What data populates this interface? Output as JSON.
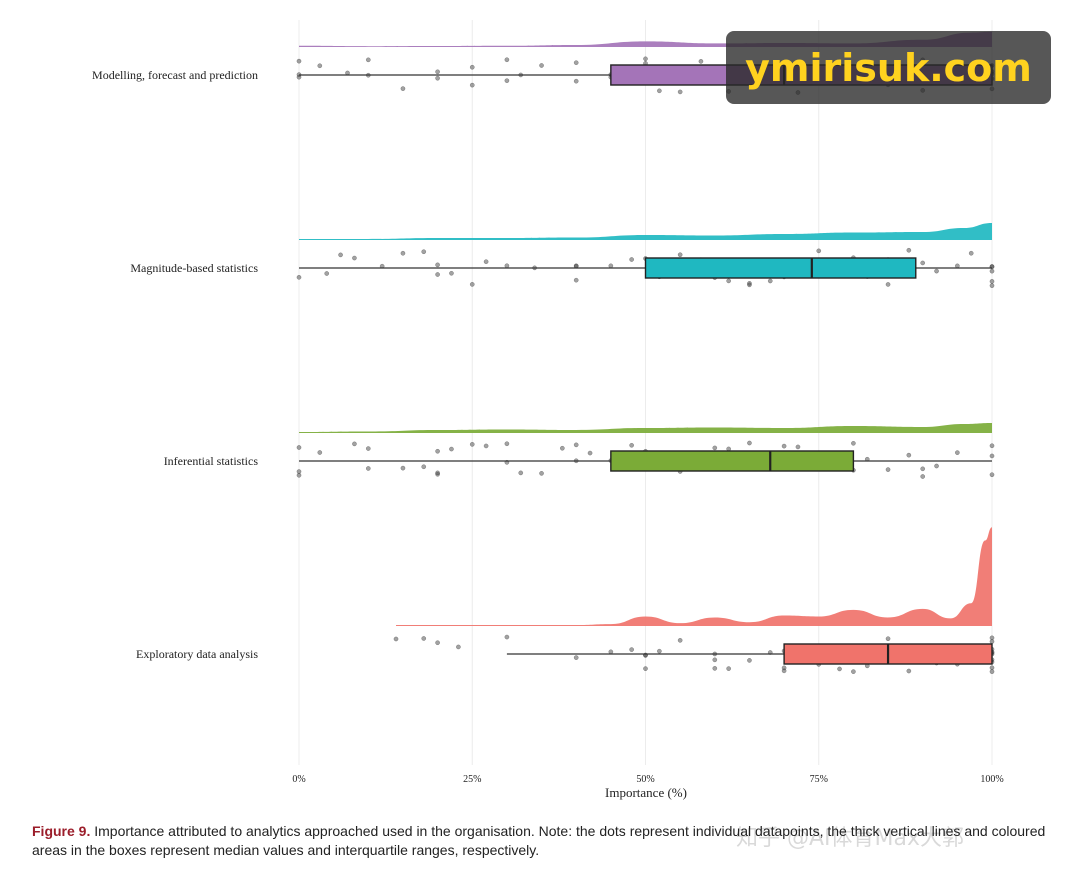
{
  "chart_data": {
    "type": "raincloud",
    "xlabel": "Importance (%)",
    "xlim": [
      0,
      100
    ],
    "ticks": [
      "0%",
      "25%",
      "50%",
      "75%",
      "100%"
    ],
    "tick_values": [
      0,
      25,
      50,
      75,
      100
    ],
    "grid": "vertical",
    "series": [
      {
        "name": "Modelling, forecast and prediction",
        "color": "#a474b8",
        "box": {
          "q1": 45,
          "median": 70,
          "q3": 100,
          "whisker_low": 0,
          "whisker_high": 100
        },
        "density": [
          [
            0,
            0.15
          ],
          [
            10,
            0.1
          ],
          [
            20,
            0.12
          ],
          [
            30,
            0.15
          ],
          [
            40,
            0.25
          ],
          [
            50,
            0.7
          ],
          [
            60,
            0.45
          ],
          [
            70,
            0.5
          ],
          [
            80,
            0.45
          ],
          [
            90,
            0.9
          ],
          [
            97,
            1.8
          ],
          [
            100,
            1.9
          ]
        ],
        "points": [
          0,
          0,
          0,
          3,
          7,
          10,
          10,
          15,
          20,
          20,
          25,
          25,
          30,
          30,
          32,
          35,
          40,
          40,
          45,
          45,
          50,
          50,
          52,
          55,
          58,
          60,
          62,
          65,
          65,
          68,
          70,
          70,
          72,
          72,
          75,
          78,
          80,
          80,
          82,
          85,
          85,
          88,
          90,
          90,
          95,
          100,
          100,
          100,
          100,
          100
        ]
      },
      {
        "name": "Magnitude-based statistics",
        "color": "#1fb8c1",
        "box": {
          "q1": 50,
          "median": 74,
          "q3": 89,
          "whisker_low": 0,
          "whisker_high": 100
        },
        "density": [
          [
            0,
            0.1
          ],
          [
            10,
            0.1
          ],
          [
            20,
            0.2
          ],
          [
            30,
            0.2
          ],
          [
            40,
            0.25
          ],
          [
            50,
            0.5
          ],
          [
            60,
            0.45
          ],
          [
            70,
            0.6
          ],
          [
            80,
            0.75
          ],
          [
            90,
            0.8
          ],
          [
            96,
            1.2
          ],
          [
            100,
            1.7
          ]
        ],
        "points": [
          0,
          4,
          6,
          8,
          12,
          15,
          18,
          20,
          20,
          22,
          25,
          27,
          30,
          34,
          40,
          40,
          40,
          45,
          48,
          50,
          52,
          55,
          58,
          60,
          62,
          65,
          65,
          68,
          70,
          70,
          72,
          75,
          75,
          78,
          80,
          80,
          80,
          82,
          85,
          85,
          88,
          90,
          92,
          95,
          97,
          100,
          100,
          100,
          100,
          100
        ]
      },
      {
        "name": "Inferential statistics",
        "color": "#7bab37",
        "box": {
          "q1": 45,
          "median": 68,
          "q3": 80,
          "whisker_low": 0,
          "whisker_high": 100
        },
        "density": [
          [
            0,
            0.1
          ],
          [
            10,
            0.15
          ],
          [
            20,
            0.3
          ],
          [
            30,
            0.35
          ],
          [
            40,
            0.3
          ],
          [
            50,
            0.5
          ],
          [
            60,
            0.55
          ],
          [
            70,
            0.5
          ],
          [
            80,
            0.7
          ],
          [
            90,
            0.6
          ],
          [
            96,
            0.9
          ],
          [
            100,
            1.0
          ]
        ],
        "points": [
          0,
          0,
          0,
          3,
          8,
          10,
          10,
          15,
          18,
          20,
          20,
          20,
          22,
          25,
          27,
          30,
          30,
          32,
          35,
          38,
          40,
          40,
          42,
          45,
          48,
          50,
          50,
          52,
          55,
          60,
          62,
          65,
          68,
          70,
          70,
          72,
          75,
          78,
          80,
          80,
          82,
          85,
          88,
          90,
          90,
          92,
          95,
          100,
          100,
          100
        ]
      },
      {
        "name": "Exploratory data analysis",
        "color": "#f0736b",
        "box": {
          "q1": 70,
          "median": 85,
          "q3": 100,
          "whisker_low": 30,
          "whisker_high": 100
        },
        "density": [
          [
            14,
            0.05
          ],
          [
            20,
            0.05
          ],
          [
            30,
            0.05
          ],
          [
            40,
            0.05
          ],
          [
            45,
            0.1
          ],
          [
            50,
            0.5
          ],
          [
            55,
            0.15
          ],
          [
            60,
            0.45
          ],
          [
            65,
            0.2
          ],
          [
            70,
            0.55
          ],
          [
            75,
            0.5
          ],
          [
            80,
            0.85
          ],
          [
            85,
            0.45
          ],
          [
            90,
            0.9
          ],
          [
            94,
            0.4
          ],
          [
            97,
            1.2
          ],
          [
            99,
            4.5
          ],
          [
            100,
            5.2
          ]
        ],
        "points": [
          14,
          18,
          20,
          23,
          30,
          40,
          45,
          48,
          50,
          50,
          50,
          52,
          55,
          60,
          60,
          60,
          62,
          65,
          68,
          70,
          70,
          70,
          72,
          75,
          75,
          78,
          80,
          80,
          80,
          82,
          85,
          85,
          88,
          90,
          90,
          90,
          92,
          95,
          100,
          100,
          100,
          100,
          100,
          100,
          100,
          100,
          100,
          100
        ]
      }
    ]
  },
  "caption": {
    "figure_label": "Figure 9.",
    "text": " Importance attributed to analytics approached used in the organisation. Note: the dots represent individual datapoints, the thick vertical lines and coloured areas in the boxes represent median values and interquartile ranges, respectively."
  },
  "watermark": "ymirisuk.com",
  "footer_watermark": "知乎 @AI体育Max大郭"
}
